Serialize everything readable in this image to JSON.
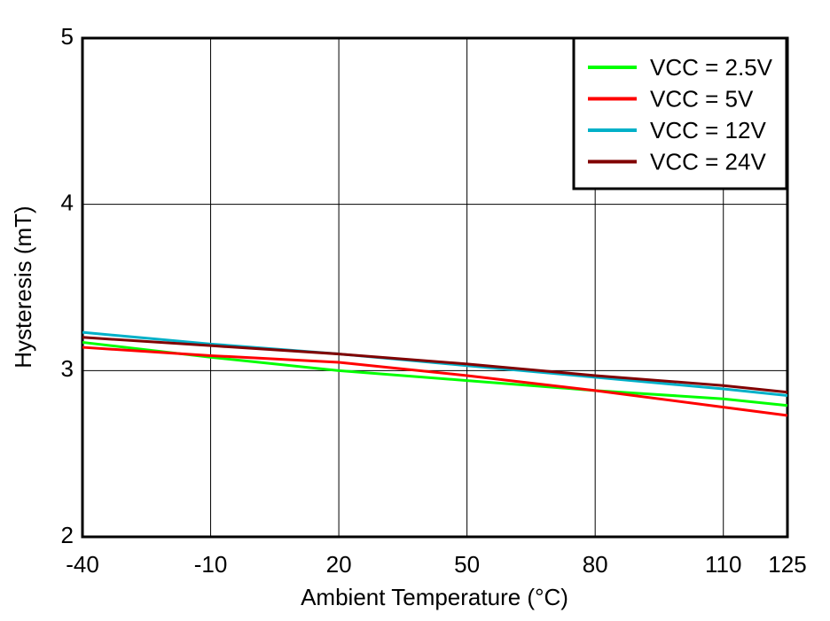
{
  "chart_data": {
    "type": "line",
    "x_label": "Ambient Temperature (°C)",
    "y_label": "Hysteresis (mT)",
    "x": [
      -40,
      -10,
      20,
      50,
      80,
      110,
      125
    ],
    "series": [
      {
        "name": "VCC = 2.5V",
        "color": "#00ff00",
        "values": [
          3.17,
          3.08,
          3.0,
          2.94,
          2.88,
          2.83,
          2.79
        ]
      },
      {
        "name": "VCC = 5V",
        "color": "#ff0000",
        "values": [
          3.14,
          3.09,
          3.05,
          2.97,
          2.88,
          2.78,
          2.73
        ]
      },
      {
        "name": "VCC = 12V",
        "color": "#00b0c8",
        "values": [
          3.23,
          3.16,
          3.1,
          3.03,
          2.96,
          2.89,
          2.85
        ]
      },
      {
        "name": "VCC = 24V",
        "color": "#800000",
        "values": [
          3.2,
          3.15,
          3.1,
          3.04,
          2.97,
          2.91,
          2.87
        ]
      }
    ],
    "xlim": [
      -40,
      125
    ],
    "xticks": [
      -40,
      -10,
      20,
      50,
      80,
      110,
      125
    ],
    "ylim": [
      2,
      5
    ],
    "yticks": [
      2,
      3,
      4,
      5
    ],
    "grid": true,
    "legend": "upper right"
  }
}
